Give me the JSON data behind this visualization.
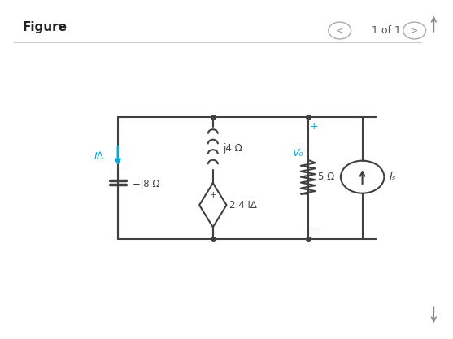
{
  "bg_color": "#ffffff",
  "circuit_color": "#404040",
  "cyan_color": "#00aadd",
  "fig_width": 5.57,
  "fig_height": 4.17,
  "dpi": 100,
  "labels": {
    "figure": "Figure",
    "nav": "1 of 1",
    "I_delta": "I∆",
    "neg_j8": "−j8 Ω",
    "j4": "j4 Ω",
    "v_dep": "2.4 I∆",
    "V0": "V₀",
    "five_ohm": "5 Ω",
    "Is": "Iₛ",
    "plus": "+",
    "minus": "−"
  }
}
